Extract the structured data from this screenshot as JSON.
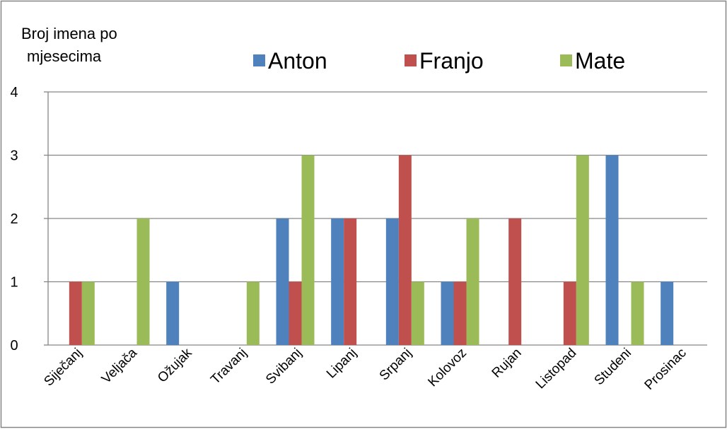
{
  "chart_data": {
    "type": "bar",
    "title_lines": [
      "Broj imena po",
      "mjesecima"
    ],
    "categories": [
      "Siječanj",
      "Veljača",
      "Ožujak",
      "Travanj",
      "Svibanj",
      "Lipanj",
      "Srpanj",
      "Kolovoz",
      "Rujan",
      "Listopad",
      "Studeni",
      "Prosinac"
    ],
    "series": [
      {
        "name": "Anton",
        "color": "#4F81BD",
        "values": [
          0,
          0,
          1,
          0,
          2,
          2,
          2,
          1,
          0,
          0,
          3,
          1
        ]
      },
      {
        "name": "Franjo",
        "color": "#C0504D",
        "values": [
          1,
          0,
          0,
          0,
          1,
          2,
          3,
          1,
          2,
          1,
          0,
          0
        ]
      },
      {
        "name": "Mate",
        "color": "#9BBB59",
        "values": [
          1,
          2,
          0,
          1,
          3,
          0,
          1,
          2,
          0,
          3,
          1,
          0
        ]
      }
    ],
    "ylim": [
      0,
      4
    ],
    "yticks": [
      0,
      1,
      2,
      3,
      4
    ],
    "grid": true,
    "legend": "top"
  }
}
